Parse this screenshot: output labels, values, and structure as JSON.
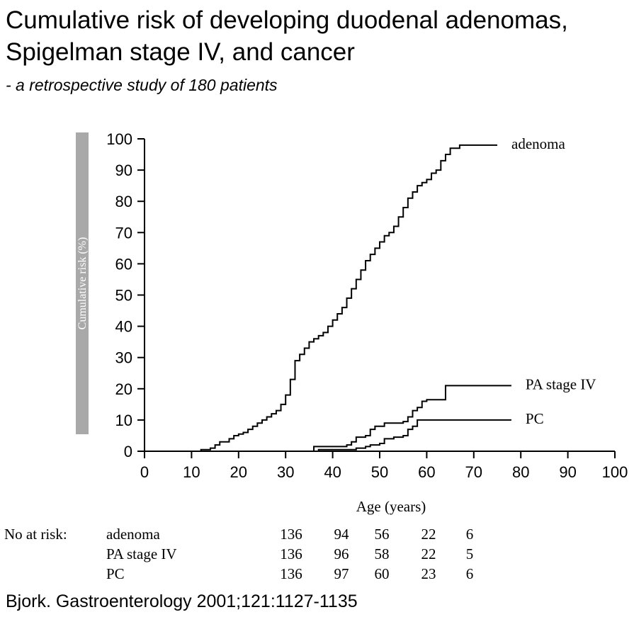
{
  "title": "Cumulative risk of developing duodenal adenomas, Spigelman stage IV, and cancer",
  "subtitle": "- a retrospective study of 180 patients",
  "source": "Bjork. Gastroenterology 2001;121:1127-1135",
  "chart_data": {
    "type": "line",
    "step": true,
    "xlabel": "Age (years)",
    "ylabel": "Cumulative risk (%)",
    "xlim": [
      0,
      100
    ],
    "ylim": [
      0,
      100
    ],
    "xticks": [
      "0",
      "10",
      "20",
      "30",
      "40",
      "50",
      "60",
      "70",
      "80",
      "90",
      "100"
    ],
    "yticks": [
      "0",
      "10",
      "20",
      "30",
      "40",
      "50",
      "60",
      "70",
      "80",
      "90",
      "100"
    ],
    "grid": false,
    "legend": "labels at line ends",
    "series": [
      {
        "name": "adenoma",
        "color": "#000000",
        "x": [
          0,
          12,
          14,
          15,
          16,
          18,
          19,
          20,
          21,
          22,
          23,
          24,
          25,
          26,
          27,
          28,
          29,
          30,
          31,
          32,
          33,
          34,
          35,
          36,
          37,
          38,
          39,
          40,
          41,
          42,
          43,
          44,
          45,
          46,
          47,
          48,
          49,
          50,
          51,
          52,
          53,
          54,
          55,
          56,
          57,
          58,
          59,
          60,
          61,
          62,
          63,
          64,
          65,
          67,
          70,
          71,
          72,
          73,
          74,
          75
        ],
        "y": [
          0,
          0.5,
          1,
          2,
          3,
          4,
          5,
          5.5,
          6,
          7,
          8,
          9,
          10,
          11,
          12,
          13,
          15,
          18,
          23,
          29,
          31,
          33,
          35,
          36,
          37,
          38,
          40,
          42,
          44,
          46,
          49,
          52,
          55,
          58,
          61,
          63,
          65,
          67,
          69,
          70,
          72,
          75,
          78,
          81,
          83,
          85,
          86,
          87,
          89,
          90,
          93,
          95,
          97,
          98,
          98,
          98,
          98,
          98,
          98,
          98
        ]
      },
      {
        "name": "PA stage IV",
        "color": "#000000",
        "x": [
          32,
          36,
          41,
          43,
          44,
          45,
          47,
          48,
          49,
          51,
          55,
          56,
          57,
          58,
          59,
          60,
          64,
          66,
          78
        ],
        "y": [
          0,
          1.5,
          1.5,
          2,
          3,
          4.5,
          5,
          7,
          8,
          9,
          9.5,
          11,
          13,
          14,
          16,
          16.5,
          21,
          21,
          21
        ]
      },
      {
        "name": "PC",
        "color": "#000000",
        "x": [
          32,
          37,
          43,
          45,
          47,
          48,
          50,
          51,
          53,
          55,
          56,
          57,
          58,
          60,
          64,
          78
        ],
        "y": [
          0,
          0.5,
          0.5,
          1,
          1.5,
          2,
          2.5,
          4,
          4.5,
          5,
          7,
          8,
          10,
          10,
          10,
          10
        ]
      }
    ]
  },
  "risk_table": {
    "heading": "No at risk:",
    "rows": [
      {
        "label": "adenoma",
        "values": [
          "136",
          "94",
          "56",
          "22",
          "6"
        ]
      },
      {
        "label": "PA stage IV",
        "values": [
          "136",
          "96",
          "58",
          "22",
          "5"
        ]
      },
      {
        "label": "PC",
        "values": [
          "136",
          "97",
          "60",
          "23",
          "6"
        ]
      }
    ]
  }
}
